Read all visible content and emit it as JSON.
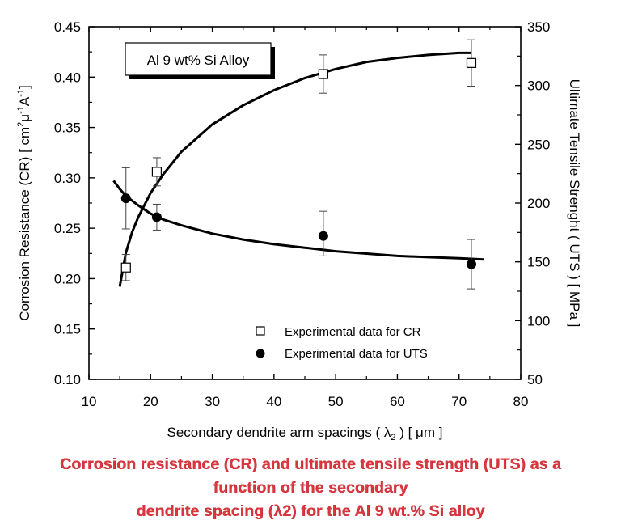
{
  "chart_data": {
    "type": "scatter",
    "x": {
      "label_main": "Secondary dendrite arm spacings ( ",
      "label_lambda": "λ",
      "label_sub": "2",
      "label_tail": " ) [ μm ]",
      "range": [
        10,
        80
      ],
      "ticks": [
        "10",
        "20",
        "30",
        "40",
        "50",
        "60",
        "70",
        "80"
      ]
    },
    "y_left": {
      "label_main": "Corrosion Resistance (CR) [ cm",
      "label_sup1": "2",
      "label_mu": "μ",
      "label_sup2": "-1",
      "label_A": "A",
      "label_sup3": "-1",
      "label_tail": "]",
      "range": [
        0.1,
        0.45
      ],
      "ticks": [
        "0.10",
        "0.15",
        "0.20",
        "0.25",
        "0.30",
        "0.35",
        "0.40",
        "0.45"
      ]
    },
    "y_right": {
      "label": "Ultimate Tensile Strenght ( UTS ) [ MPa ]",
      "range": [
        50,
        350
      ],
      "ticks": [
        "50",
        "100",
        "150",
        "200",
        "250",
        "300",
        "350"
      ]
    },
    "annotation": "Al 9 wt% Si Alloy",
    "legend_position": "bottom-right",
    "series": [
      {
        "name": "Experimental data for CR",
        "marker": "open-square",
        "axis": "left",
        "points": [
          {
            "x": 16,
            "y": 0.211,
            "err_low": 0.198,
            "err_high": 0.224
          },
          {
            "x": 21,
            "y": 0.306,
            "err_low": 0.292,
            "err_high": 0.32
          },
          {
            "x": 48,
            "y": 0.403,
            "err_low": 0.384,
            "err_high": 0.422
          },
          {
            "x": 72,
            "y": 0.414,
            "err_low": 0.391,
            "err_high": 0.437
          }
        ],
        "fit": [
          [
            15,
            0.192
          ],
          [
            16,
            0.226
          ],
          [
            17,
            0.246
          ],
          [
            18,
            0.261
          ],
          [
            20,
            0.285
          ],
          [
            22,
            0.303
          ],
          [
            25,
            0.326
          ],
          [
            30,
            0.353
          ],
          [
            35,
            0.372
          ],
          [
            40,
            0.387
          ],
          [
            45,
            0.399
          ],
          [
            50,
            0.408
          ],
          [
            55,
            0.415
          ],
          [
            60,
            0.419
          ],
          [
            65,
            0.422
          ],
          [
            70,
            0.424
          ],
          [
            72,
            0.424
          ]
        ]
      },
      {
        "name": "Experimental data for UTS",
        "marker": "filled-circle",
        "axis": "right",
        "points": [
          {
            "x": 16,
            "y": 204,
            "err_low": 178,
            "err_high": 230
          },
          {
            "x": 21,
            "y": 188,
            "err_low": 177,
            "err_high": 199
          },
          {
            "x": 48,
            "y": 172,
            "err_low": 155,
            "err_high": 193
          },
          {
            "x": 72,
            "y": 148,
            "err_low": 127,
            "err_high": 169
          }
        ],
        "fit": [
          [
            14,
            219
          ],
          [
            15,
            212
          ],
          [
            16,
            206
          ],
          [
            18,
            198
          ],
          [
            20,
            191
          ],
          [
            22,
            186
          ],
          [
            25,
            181
          ],
          [
            30,
            174
          ],
          [
            35,
            169
          ],
          [
            40,
            165
          ],
          [
            45,
            162
          ],
          [
            50,
            159
          ],
          [
            55,
            157
          ],
          [
            60,
            155
          ],
          [
            65,
            154
          ],
          [
            70,
            153
          ],
          [
            74,
            152
          ]
        ]
      }
    ]
  },
  "caption": {
    "line1": "Corrosion resistance (CR) and ultimate tensile strength (UTS) as a",
    "line2": "function of the secondary",
    "line3": "dendrite spacing (λ2) for the Al 9 wt.% Si alloy"
  }
}
